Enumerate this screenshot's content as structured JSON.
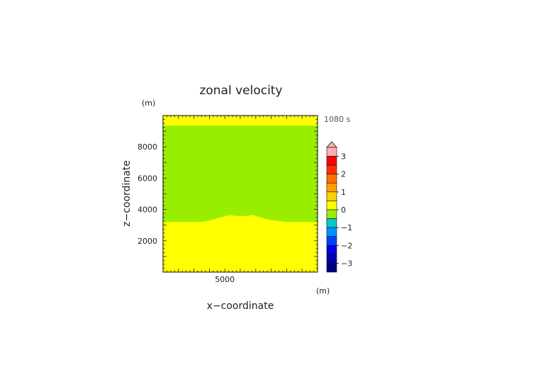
{
  "chart_data": {
    "type": "heatmap",
    "title": "zonal velocity",
    "xlabel": "x−coordinate",
    "ylabel": "z−coordinate",
    "x_unit": "(m)",
    "y_unit": "(m)",
    "time_label": "1080 s",
    "xlim": [
      1000,
      11000
    ],
    "ylim": [
      0,
      10000
    ],
    "x_ticks": [
      5000
    ],
    "y_ticks": [
      2000,
      4000,
      6000,
      8000
    ],
    "x_tick_labels": [
      "5000"
    ],
    "y_tick_labels": [
      "2000",
      "4000",
      "6000",
      "8000"
    ],
    "regions": [
      {
        "level": "0 to 0.5",
        "color": "#ffff00",
        "description_lower_boundary_z": [
          [
            1000,
            3200
          ],
          [
            3500,
            3200
          ],
          [
            4200,
            3350
          ],
          [
            5300,
            3650
          ],
          [
            5800,
            3580
          ],
          [
            6300,
            3580
          ],
          [
            6800,
            3650
          ],
          [
            7800,
            3350
          ],
          [
            9000,
            3200
          ],
          [
            11000,
            3200
          ]
        ]
      },
      {
        "level": "-0.5 to 0",
        "color": "#99ee00"
      },
      {
        "level": "0 to 0.5",
        "color": "#ffff00",
        "z_from": 9350,
        "z_to": 10000
      }
    ],
    "colorbar": {
      "tick_labels": [
        "3",
        "2",
        "1",
        "0",
        "−1",
        "−2",
        "−3"
      ],
      "tick_values": [
        3,
        2,
        1,
        0,
        -1,
        -2,
        -3
      ],
      "max_arrow": true,
      "bands": [
        {
          "from": -3.5,
          "to": -3.0,
          "color": "#000080"
        },
        {
          "from": -3.0,
          "to": -2.5,
          "color": "#0000b0"
        },
        {
          "from": -2.5,
          "to": -2.0,
          "color": "#0000e0"
        },
        {
          "from": -2.0,
          "to": -1.5,
          "color": "#0040ff"
        },
        {
          "from": -1.5,
          "to": -1.0,
          "color": "#0090ff"
        },
        {
          "from": -1.0,
          "to": -0.5,
          "color": "#00c8c8"
        },
        {
          "from": -0.5,
          "to": 0.0,
          "color": "#99ee00"
        },
        {
          "from": 0.0,
          "to": 0.5,
          "color": "#ffff00"
        },
        {
          "from": 0.5,
          "to": 1.0,
          "color": "#ffd000"
        },
        {
          "from": 1.0,
          "to": 1.5,
          "color": "#ffa000"
        },
        {
          "from": 1.5,
          "to": 2.0,
          "color": "#ff7000"
        },
        {
          "from": 2.0,
          "to": 2.5,
          "color": "#ff3000"
        },
        {
          "from": 2.5,
          "to": 3.0,
          "color": "#ff0000"
        },
        {
          "from": 3.0,
          "to": 3.5,
          "color": "#ffb0b0"
        }
      ]
    }
  }
}
